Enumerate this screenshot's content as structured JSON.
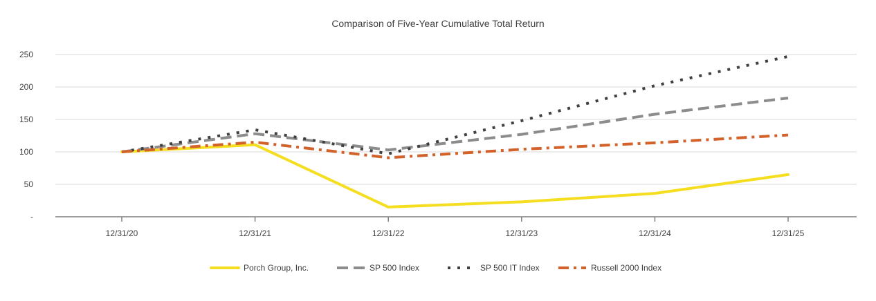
{
  "chart_data": {
    "type": "line",
    "title": "Comparison of Five-Year Cumulative Total Return",
    "xlabel": "",
    "ylabel": "",
    "categories": [
      "12/31/20",
      "12/31/21",
      "12/31/22",
      "12/31/23",
      "12/31/24",
      "12/31/25"
    ],
    "yticks": [
      "250",
      "200",
      "150",
      "100",
      "50",
      "-"
    ],
    "ylim": [
      0,
      250
    ],
    "grid": true,
    "legend_position": "bottom",
    "series": [
      {
        "name": "Porch Group, Inc.",
        "values": [
          100,
          111,
          15,
          23,
          36,
          65
        ],
        "color": "#F5DD20",
        "style": "solid"
      },
      {
        "name": "SP 500 Index",
        "values": [
          100,
          128,
          103,
          127,
          158,
          183
        ],
        "color": "#8C8C8C",
        "style": "dashed"
      },
      {
        "name": "SP 500 IT Index",
        "values": [
          100,
          134,
          97,
          148,
          202,
          247
        ],
        "color": "#404040",
        "style": "dotted"
      },
      {
        "name": "Russell 2000 Index",
        "values": [
          100,
          115,
          91,
          104,
          114,
          126
        ],
        "color": "#D2622A",
        "style": "dashdot"
      }
    ]
  }
}
